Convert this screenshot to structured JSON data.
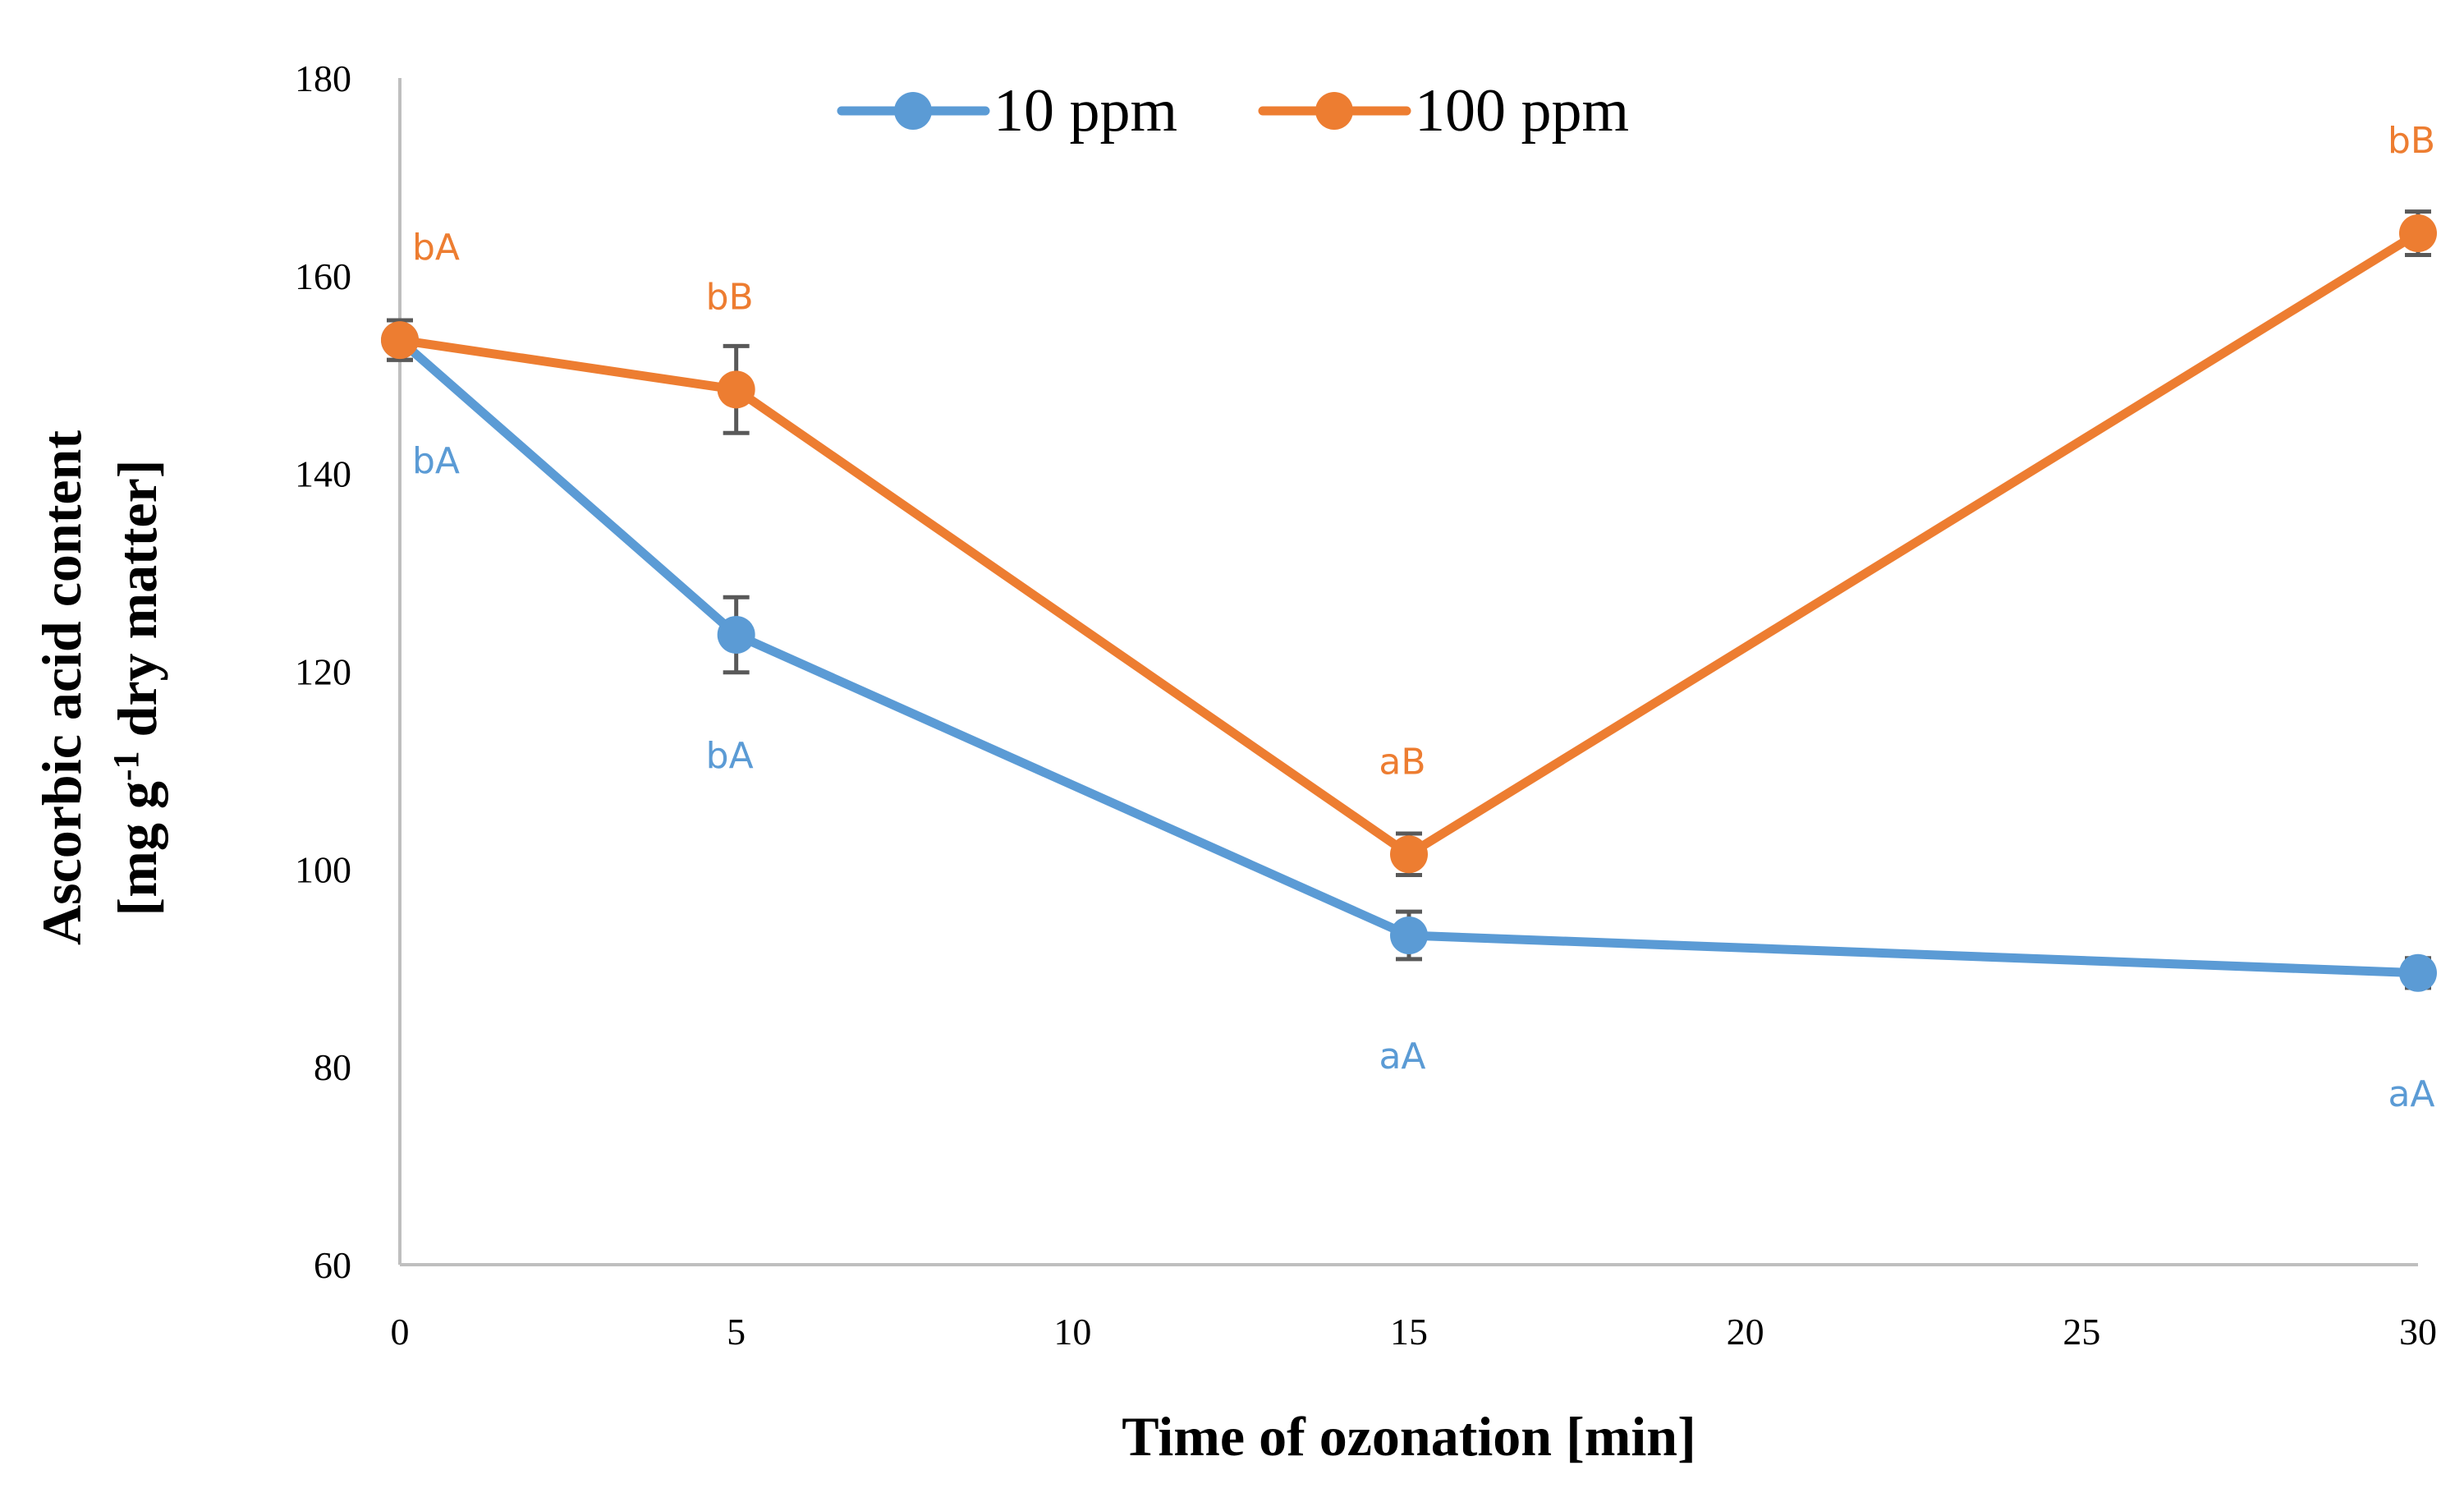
{
  "chart_data": {
    "type": "line",
    "x": [
      0,
      5,
      15,
      30
    ],
    "xlim": [
      0,
      30
    ],
    "xticks": [
      0,
      5,
      10,
      15,
      20,
      25,
      30
    ],
    "ylim": [
      60,
      180
    ],
    "yticks": [
      60,
      80,
      100,
      120,
      140,
      160,
      180
    ],
    "xlabel": "Time of ozonation [min]",
    "ylabel_line1": "Ascorbic acid content",
    "ylabel_line2_pre": "[mg g",
    "ylabel_line2_sup": "-1",
    "ylabel_line2_post": " dry matter]",
    "legend_position": "top-center",
    "series": [
      {
        "name": "10 ppm",
        "color": "#5B9BD5",
        "values": [
          153.5,
          123.7,
          93.3,
          89.5
        ],
        "errors": [
          2.0,
          3.8,
          2.4,
          1.5
        ],
        "labels": [
          "bA",
          "bA",
          "aA",
          "aA"
        ],
        "label_side": [
          "below",
          "below",
          "below",
          "below"
        ]
      },
      {
        "name": "100 ppm",
        "color": "#ED7D31",
        "values": [
          153.5,
          148.5,
          101.5,
          164.3
        ],
        "errors": [
          2.0,
          4.4,
          2.1,
          2.2
        ],
        "labels": [
          "bA",
          "bB",
          "aB",
          "bB"
        ],
        "label_side": [
          "above",
          "above",
          "above",
          "above"
        ]
      }
    ]
  }
}
